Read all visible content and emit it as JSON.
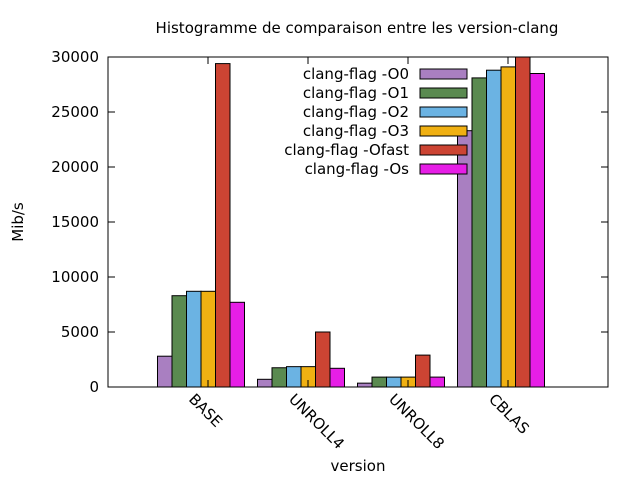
{
  "chart_data": {
    "type": "bar",
    "title": "Histogramme de comparaison entre les version-clang",
    "xlabel": "version",
    "ylabel": "Mib/s",
    "ylim": [
      0,
      30000
    ],
    "yticks": [
      0,
      5000,
      10000,
      15000,
      20000,
      25000,
      30000
    ],
    "categories": [
      "BASE",
      "UNROLL4",
      "UNROLL8",
      "CBLAS"
    ],
    "series": [
      {
        "name": "clang-flag -O0",
        "color": "#a97fc1",
        "values": [
          2800,
          700,
          350,
          23300
        ]
      },
      {
        "name": "clang-flag -O1",
        "color": "#5a8a50",
        "values": [
          8300,
          1750,
          900,
          28100
        ]
      },
      {
        "name": "clang-flag -O2",
        "color": "#6bb3e3",
        "values": [
          8700,
          1850,
          900,
          28800
        ]
      },
      {
        "name": "clang-flag -O3",
        "color": "#f0b012",
        "values": [
          8700,
          1850,
          900,
          29100
        ]
      },
      {
        "name": "clang-flag -Ofast",
        "color": "#cc4433",
        "values": [
          29400,
          5000,
          2900,
          30000
        ]
      },
      {
        "name": "clang-flag -Os",
        "color": "#e61ee6",
        "values": [
          7700,
          1700,
          900,
          28500
        ]
      }
    ],
    "legend_position": "top-right",
    "grid": false
  }
}
